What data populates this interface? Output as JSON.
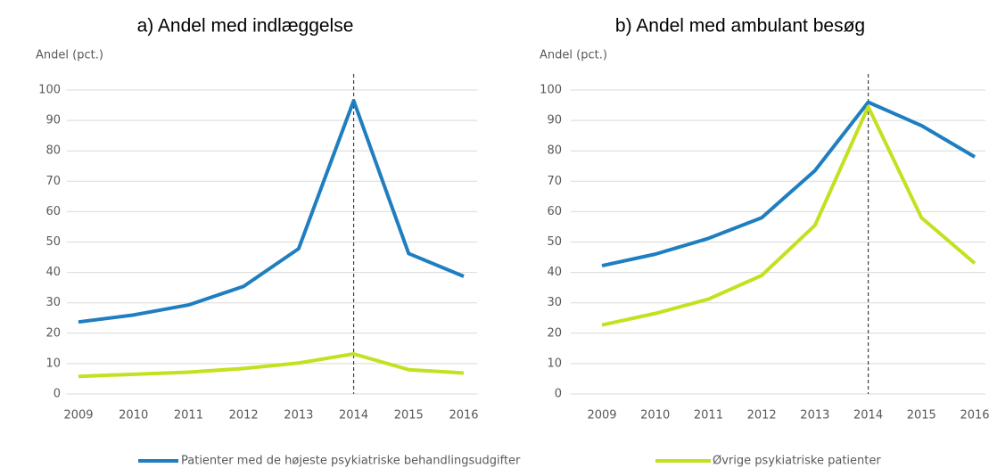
{
  "chart_data": [
    {
      "type": "line",
      "title": "a) Andel med indlæggelse",
      "y_label": "Andel (pct.)",
      "categories": [
        "2009",
        "2010",
        "2011",
        "2012",
        "2013",
        "2014",
        "2015",
        "2016"
      ],
      "series": [
        {
          "name": "Patienter med de højeste psykiatriske behandlingsudgifter",
          "color": "#1f7ec0",
          "values": [
            23.7,
            26,
            29.3,
            35.4,
            47.8,
            96.5,
            46.2,
            38.7
          ]
        },
        {
          "name": "Øvrige psykiatriske patienter",
          "color": "#c5e01f",
          "values": [
            5.8,
            6.5,
            7.2,
            8.4,
            10.2,
            13.2,
            8,
            6.9
          ]
        }
      ],
      "reference_line": "2014",
      "ylim": [
        0,
        100
      ],
      "yticks": [
        0,
        10,
        20,
        30,
        40,
        50,
        60,
        70,
        80,
        90,
        100
      ],
      "grid": true
    },
    {
      "type": "line",
      "title": "b) Andel med ambulant besøg",
      "y_label": "Andel (pct.)",
      "categories": [
        "2009",
        "2010",
        "2011",
        "2012",
        "2013",
        "2014",
        "2015",
        "2016"
      ],
      "series": [
        {
          "color": "#1f7ec0",
          "values": [
            42.2,
            46,
            51.2,
            58,
            73.5,
            96,
            88.3,
            78
          ]
        },
        {
          "color": "#c5e01f",
          "values": [
            22.7,
            26.5,
            31.2,
            39,
            55.5,
            94.5,
            58,
            43
          ]
        }
      ],
      "reference_line": "2014",
      "ylim": [
        0,
        100
      ],
      "yticks": [
        0,
        10,
        20,
        30,
        40,
        50,
        60,
        70,
        80,
        90,
        100
      ],
      "grid": true
    }
  ]
}
